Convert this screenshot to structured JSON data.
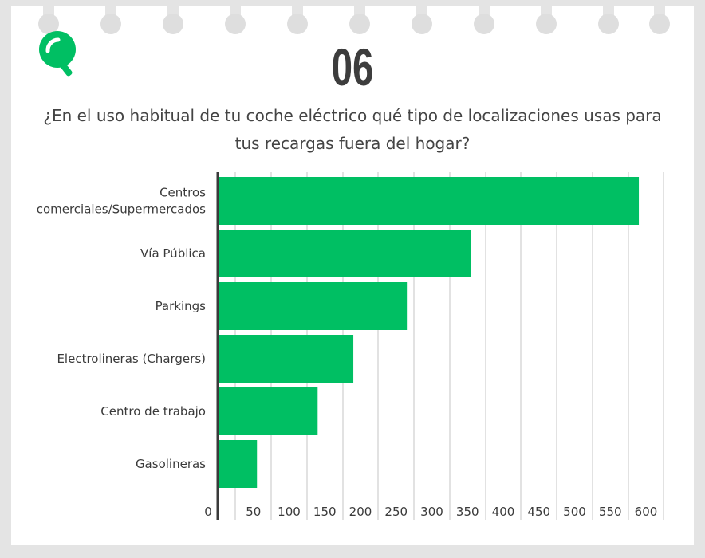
{
  "header": {
    "number": "06",
    "question_line1": "¿En el uso habitual de tu coche eléctrico qué tipo de localizaciones usas para",
    "question_line2": "tus recargas fuera del hogar?"
  },
  "colors": {
    "bar": "#00bf63",
    "logo": "#00bf63",
    "number": "#3d3d3d"
  },
  "icons": [
    "search-icon"
  ],
  "chart_data": {
    "type": "bar",
    "orientation": "horizontal",
    "categories": [
      [
        "Centros",
        "comerciales/Supermercados"
      ],
      [
        "Vía Pública"
      ],
      [
        "Parkings"
      ],
      [
        "Electrolineras (Chargers)"
      ],
      [
        "Centro de trabajo"
      ],
      [
        "Gasolineras"
      ]
    ],
    "values": [
      590,
      355,
      265,
      190,
      140,
      55
    ],
    "xticks": [
      "0",
      "50",
      "100",
      "150",
      "200",
      "250",
      "300",
      "350",
      "400",
      "450",
      "500",
      "550",
      "600"
    ],
    "xlim": [
      0,
      600
    ],
    "grid": true,
    "legend": "none"
  }
}
